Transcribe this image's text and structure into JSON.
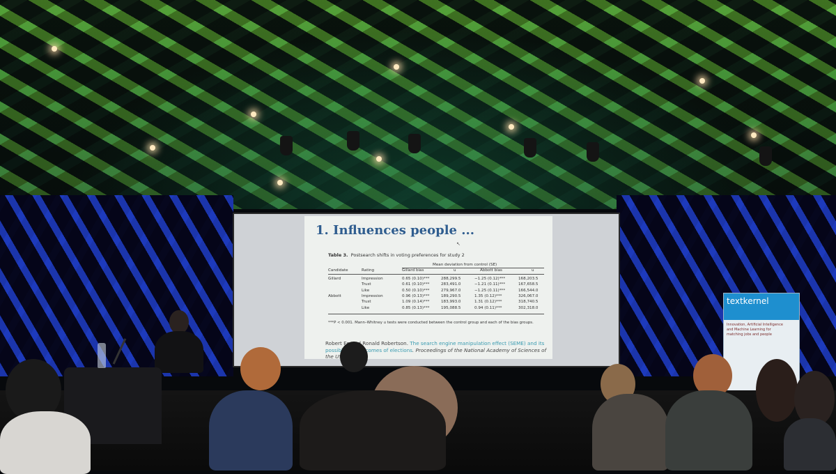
{
  "slide": {
    "title": "1. Influences people ...",
    "table_caption_label": "Table 3.",
    "table_caption_text": "Postsearch shifts in voting preferences for study 2",
    "group_header": "Mean deviation from control (SE)",
    "columns": [
      "Candidate",
      "Rating",
      "Gillard bias",
      "u",
      "Abbott bias",
      "u"
    ],
    "rows": [
      [
        "Gillard",
        "Impression",
        "0.65 (0.10)***",
        "288,299.5",
        "−1.25 (0.12)***",
        "168,203.5"
      ],
      [
        "",
        "Trust",
        "0.61 (0.10)***",
        "283,491.0",
        "−1.21 (0.11)***",
        "167,658.5"
      ],
      [
        "",
        "Like",
        "0.50 (0.10)***",
        "279,967.0",
        "−1.25 (0.11)***",
        "166,544.0"
      ],
      [
        "Abbott",
        "Impression",
        "0.96 (0.13)***",
        "189,290.5",
        "1.35 (0.12)***",
        "326,067.0"
      ],
      [
        "",
        "Trust",
        "1.09 (0.14)***",
        "183,993.0",
        "1.31 (0.12)***",
        "318,740.5"
      ],
      [
        "",
        "Like",
        "0.85 (0.13)***",
        "195,088.5",
        "0.94 (0.11)***",
        "302,318.0"
      ]
    ],
    "footnote": "***P < 0.001. Mann–Whitney u tests were conducted between the control group and each of the bias groups.",
    "citation_part1": "Robert Ep",
    "citation_part2": " and Ronald Robertson. ",
    "citation_highlight": "The search engine manipulation effect (SEME) and its possible",
    "citation_highlight2": " the outcomes of elections",
    "citation_journal": ". Proceedings of the National Academy of Sciences of the US"
  },
  "banner": {
    "brand": "textkernel",
    "lines": [
      "Innovation, Artificial Intelligence",
      "and Machine Learning for",
      "matching jobs and people"
    ]
  },
  "colors": {
    "slide_title": "#2f5d8f",
    "citation_highlight": "#3a9bb0",
    "ceiling_green": "#5fd04a",
    "wall_blue": "#2850ff",
    "banner_blue": "#1e8fcf"
  }
}
